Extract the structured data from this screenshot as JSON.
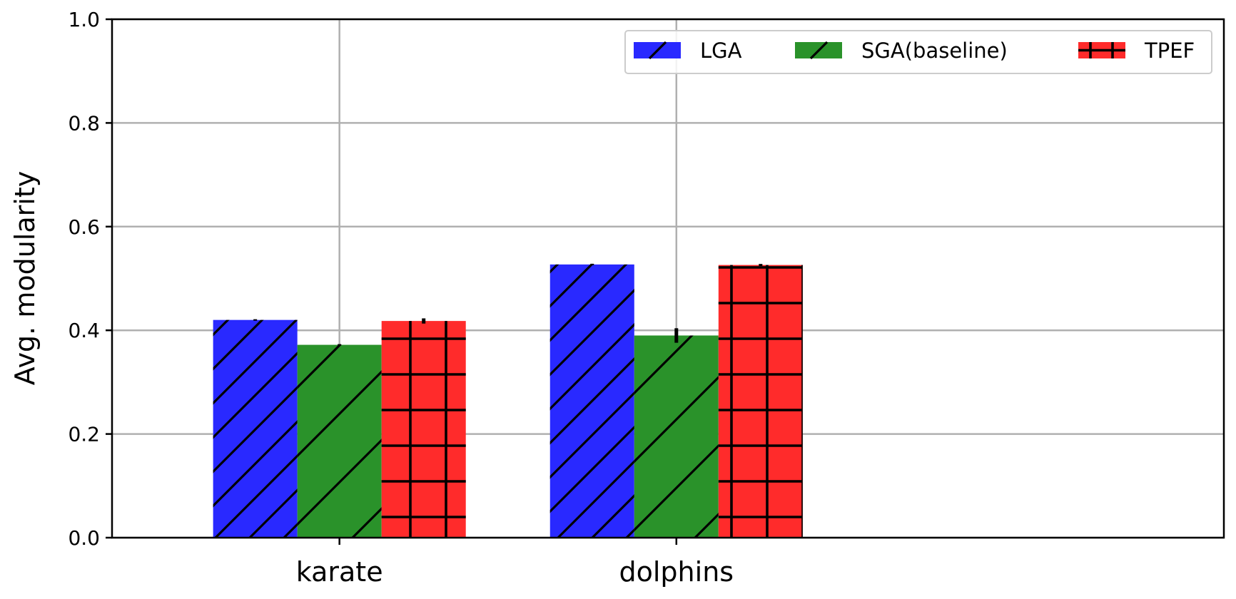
{
  "chart_data": {
    "type": "bar",
    "categories": [
      "karate",
      "dolphins"
    ],
    "series": [
      {
        "name": "LGA",
        "values": [
          0.42,
          0.527
        ],
        "errors": [
          0.0,
          0.0
        ],
        "color": "#2929ff",
        "hatch": "diagonal"
      },
      {
        "name": "SGA(baseline)",
        "values": [
          0.372,
          0.39
        ],
        "errors": [
          0.0,
          0.014
        ],
        "color": "#2a922a",
        "hatch": "diagonal-sparse"
      },
      {
        "name": "TPEF",
        "values": [
          0.418,
          0.526
        ],
        "errors": [
          0.005,
          0.002
        ],
        "color": "#ff2b2b",
        "hatch": "grid"
      }
    ],
    "xlabel": "",
    "ylabel": "Avg. modularity",
    "ylim": [
      0,
      1.0
    ],
    "yticks": [
      "0.0",
      "0.2",
      "0.4",
      "0.6",
      "0.8",
      "1.0"
    ],
    "grid": true,
    "legend_position": "top-right"
  }
}
